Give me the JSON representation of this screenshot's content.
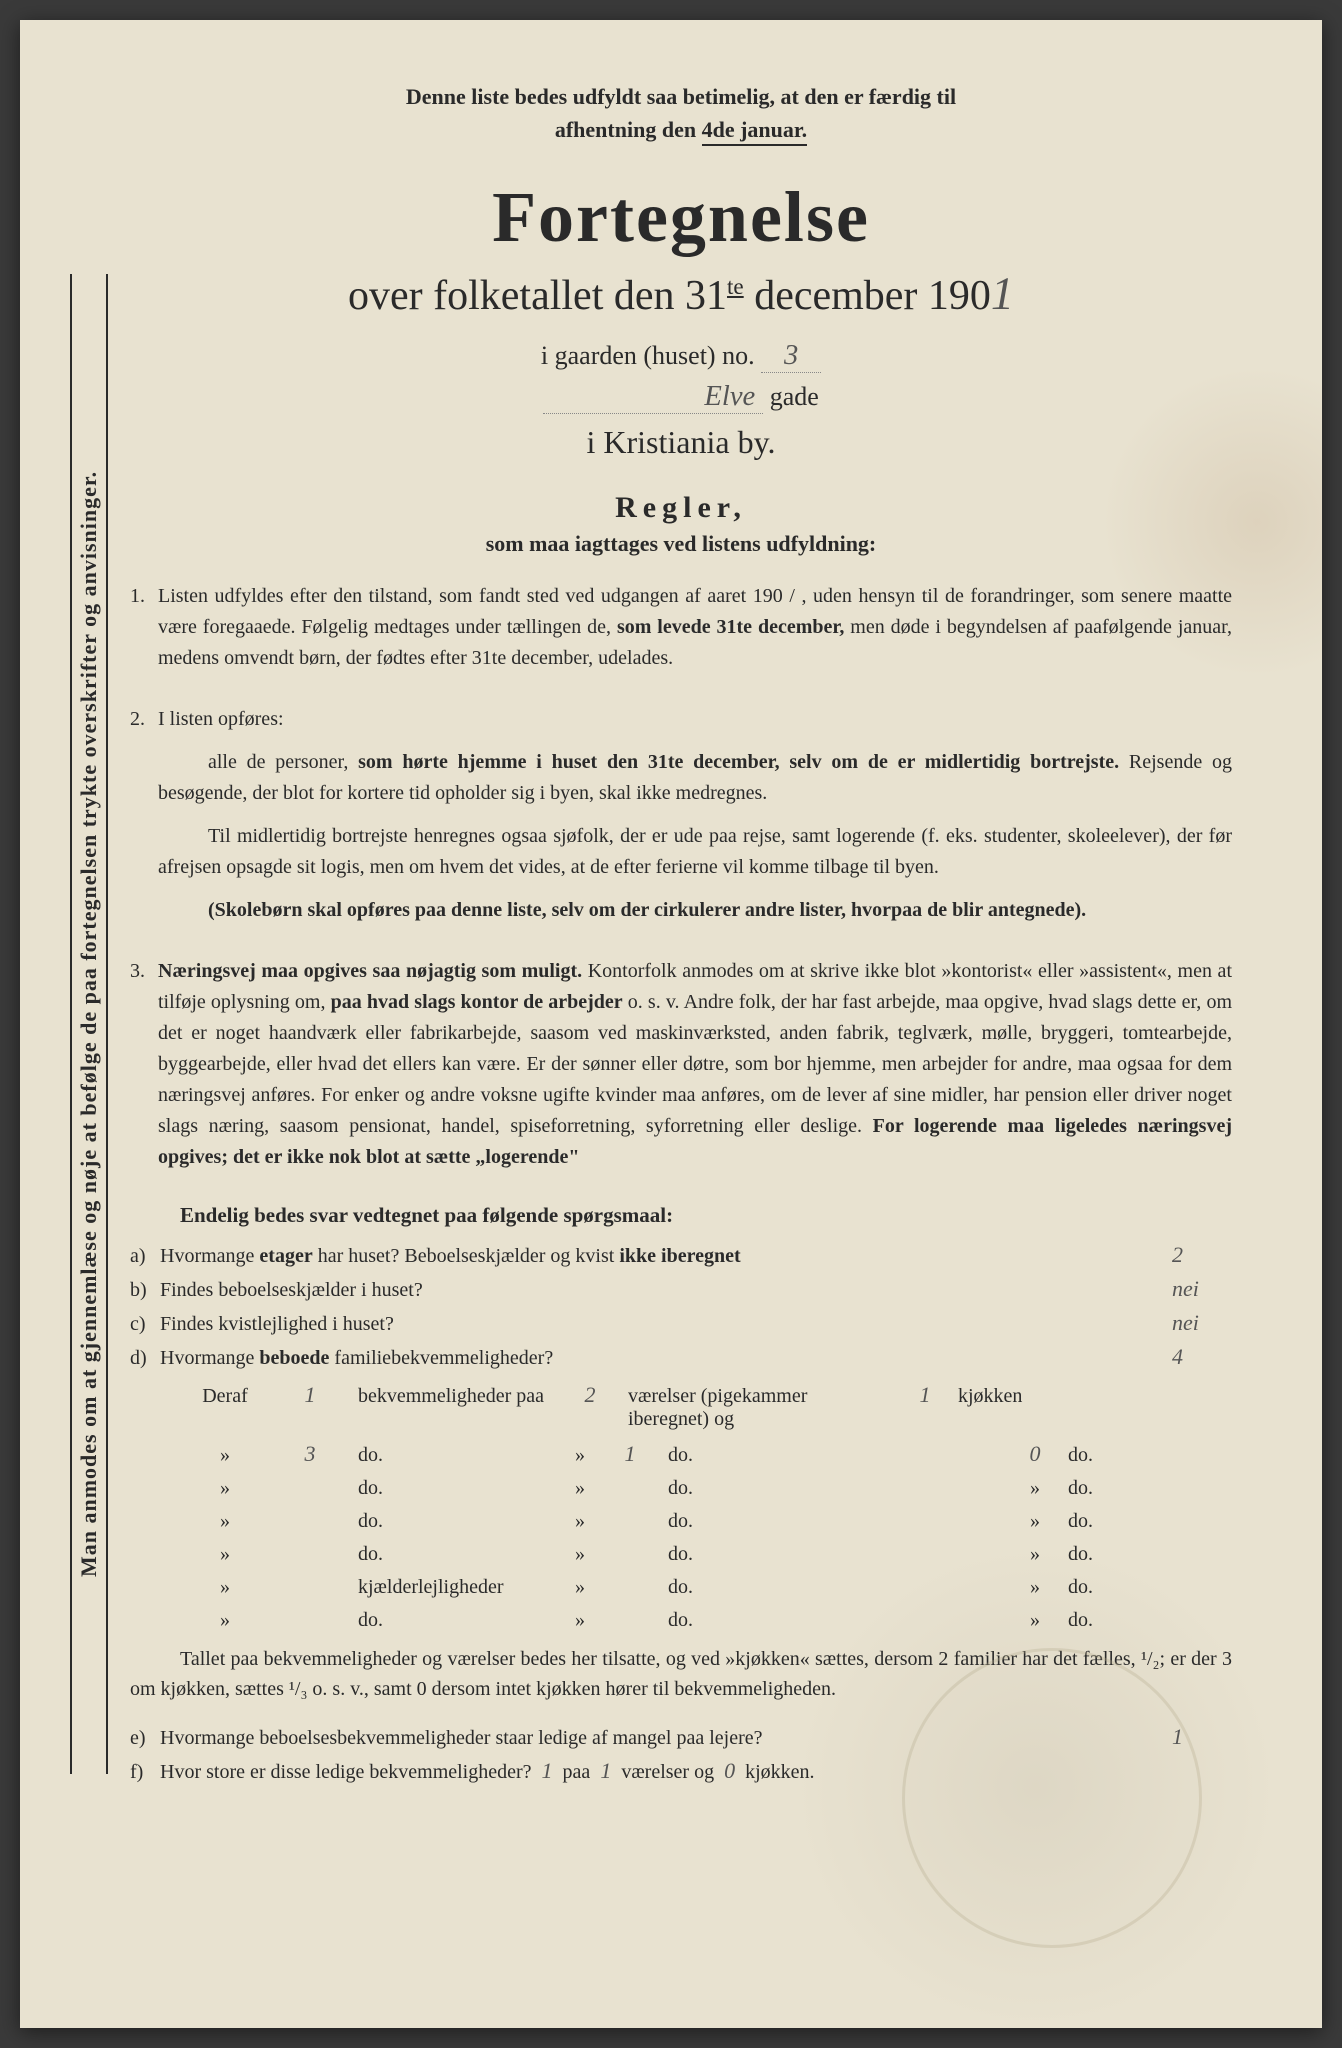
{
  "colors": {
    "paper": "#e8e2d0",
    "ink": "#2a2a2a",
    "handwriting": "#555555",
    "stain": "rgba(180,170,140,0.3)"
  },
  "typography": {
    "body_font": "Georgia, Times New Roman, serif",
    "handwritten_font": "Brush Script MT, cursive",
    "main_title_size_pt": 54,
    "subtitle_size_pt": 32,
    "body_size_pt": 15
  },
  "sidebar": "Man anmodes om at gjennemlæse og nøje at befølge de paa fortegnelsen trykte overskrifter og anvisninger.",
  "top_note": {
    "line1": "Denne liste bedes udfyldt saa betimelig, at den er færdig til",
    "line2_pre": "afhentning den ",
    "line2_underlined": "4de januar."
  },
  "title": "Fortegnelse",
  "subtitle_pre": "over folketallet den 31",
  "subtitle_sup": "te",
  "subtitle_post": " december 190",
  "year_hw": "1",
  "address": {
    "line1_pre": "i gaarden (huset) no.",
    "house_no_hw": "3",
    "street_hw": "Elve",
    "gade": "gade",
    "city": "i Kristiania by."
  },
  "rules": {
    "heading": "Regler,",
    "subheading": "som maa iagttages ved listens udfyldning:",
    "items": [
      {
        "num": "1.",
        "paragraphs": [
          "Listen udfyldes efter den tilstand, som fandt sted ved udgangen af aaret 190 / , uden hensyn til de forandringer, som senere maatte være foregaaede. Følgelig medtages under tællingen de, <b>som levede 31te december,</b> men døde i begyndelsen af paafølgende januar, medens omvendt børn, der fødtes efter 31te december, udelades."
        ]
      },
      {
        "num": "2.",
        "paragraphs": [
          "I listen opføres:",
          "alle de personer, <b>som hørte hjemme i huset den 31te december, selv om de er midlertidig bortrejste.</b> Rejsende og besøgende, der blot for kortere tid opholder sig i byen, skal ikke medregnes.",
          "Til midlertidig bortrejste henregnes ogsaa sjøfolk, der er ude paa rejse, samt logerende (f. eks. studenter, skoleelever), der før afrejsen opsagde sit logis, men om hvem det vides, at de efter ferierne vil komme tilbage til byen.",
          "<b>(Skolebørn skal opføres paa denne liste, selv om der cirkulerer andre lister, hvorpaa de blir antegnede).</b>"
        ]
      },
      {
        "num": "3.",
        "paragraphs": [
          "<b>Næringsvej maa opgives saa nøjagtig som muligt.</b> Kontorfolk anmodes om at skrive ikke blot »kontorist« eller »assistent«, men at tilføje oplysning om, <b>paa hvad slags kontor de arbejder</b> o. s. v. Andre folk, der har fast arbejde, maa opgive, hvad slags dette er, om det er noget haandværk eller fabrikarbejde, saasom ved maskinværksted, anden fabrik, teglværk, mølle, bryggeri, tomtearbejde, byggearbejde, eller hvad det ellers kan være. Er der sønner eller døtre, som bor hjemme, men arbejder for andre, maa ogsaa for dem næringsvej anføres. For enker og andre voksne ugifte kvinder maa anføres, om de lever af sine midler, har pension eller driver noget slags næring, saasom pensionat, handel, spiseforretning, syforretning eller deslige. <b>For logerende maa ligeledes næringsvej opgives; det er ikke nok blot at sætte „logerende\"</b>"
        ]
      }
    ]
  },
  "questions_title": "Endelig bedes svar vedtegnet paa følgende spørgsmaal:",
  "questions": [
    {
      "label": "a)",
      "text": "Hvormange <b>etager</b> har huset? Beboelseskjælder og kvist <b>ikke iberegnet</b>",
      "answer_hw": "2"
    },
    {
      "label": "b)",
      "text": "Findes beboelseskjælder i huset?",
      "answer_hw": "nei"
    },
    {
      "label": "c)",
      "text": "Findes kvistlejlighed i huset?",
      "answer_hw": "nei"
    },
    {
      "label": "d)",
      "text": "Hvormange <b>beboede</b> familiebekvemmeligheder?",
      "answer_hw": "4"
    }
  ],
  "accom": {
    "header": {
      "deraf": "Deraf",
      "bekv": "bekvemmeligheder paa",
      "vaer": "værelser (pigekammer iberegnet) og",
      "kjok": "kjøkken"
    },
    "rows": [
      {
        "c1": "1",
        "c2": "",
        "c5": "2",
        "c8": "1"
      },
      {
        "c1": "3",
        "c2": "",
        "c5": "1",
        "c8": "0"
      },
      {
        "c1": "»",
        "c2": "",
        "c5": "",
        "c8": "»"
      },
      {
        "c1": "»",
        "c2": "",
        "c5": "",
        "c8": "»"
      },
      {
        "c1": "»",
        "c2": "",
        "c5": "",
        "c8": "»"
      },
      {
        "c1": "»",
        "c2": "kjælderlejligheder",
        "c5": "",
        "c8": "»"
      },
      {
        "c1": "»",
        "c2": "",
        "c5": "",
        "c8": "»"
      }
    ],
    "do": "do.",
    "raquo": "»"
  },
  "footer_note": "Tallet paa bekvemmeligheder og værelser bedes her tilsatte, og ved »kjøkken« sættes, dersom 2 familier har det fælles, ¹/₂; er der 3 om kjøkken, sættes ¹/₃ o. s. v., samt 0 dersom intet kjøkken hører til bekvemmeligheden.",
  "questions2": [
    {
      "label": "e)",
      "text": "Hvormange beboelsesbekvemmeligheder staar ledige af mangel paa lejere?",
      "answer_hw": "1"
    },
    {
      "label": "f)",
      "text_pre": "Hvor store er disse ledige bekvemmeligheder?",
      "a1_hw": "1",
      "mid1": "paa",
      "a2_hw": "1",
      "mid2": "værelser og",
      "a3_hw": "0",
      "mid3": "kjøkken."
    }
  ]
}
